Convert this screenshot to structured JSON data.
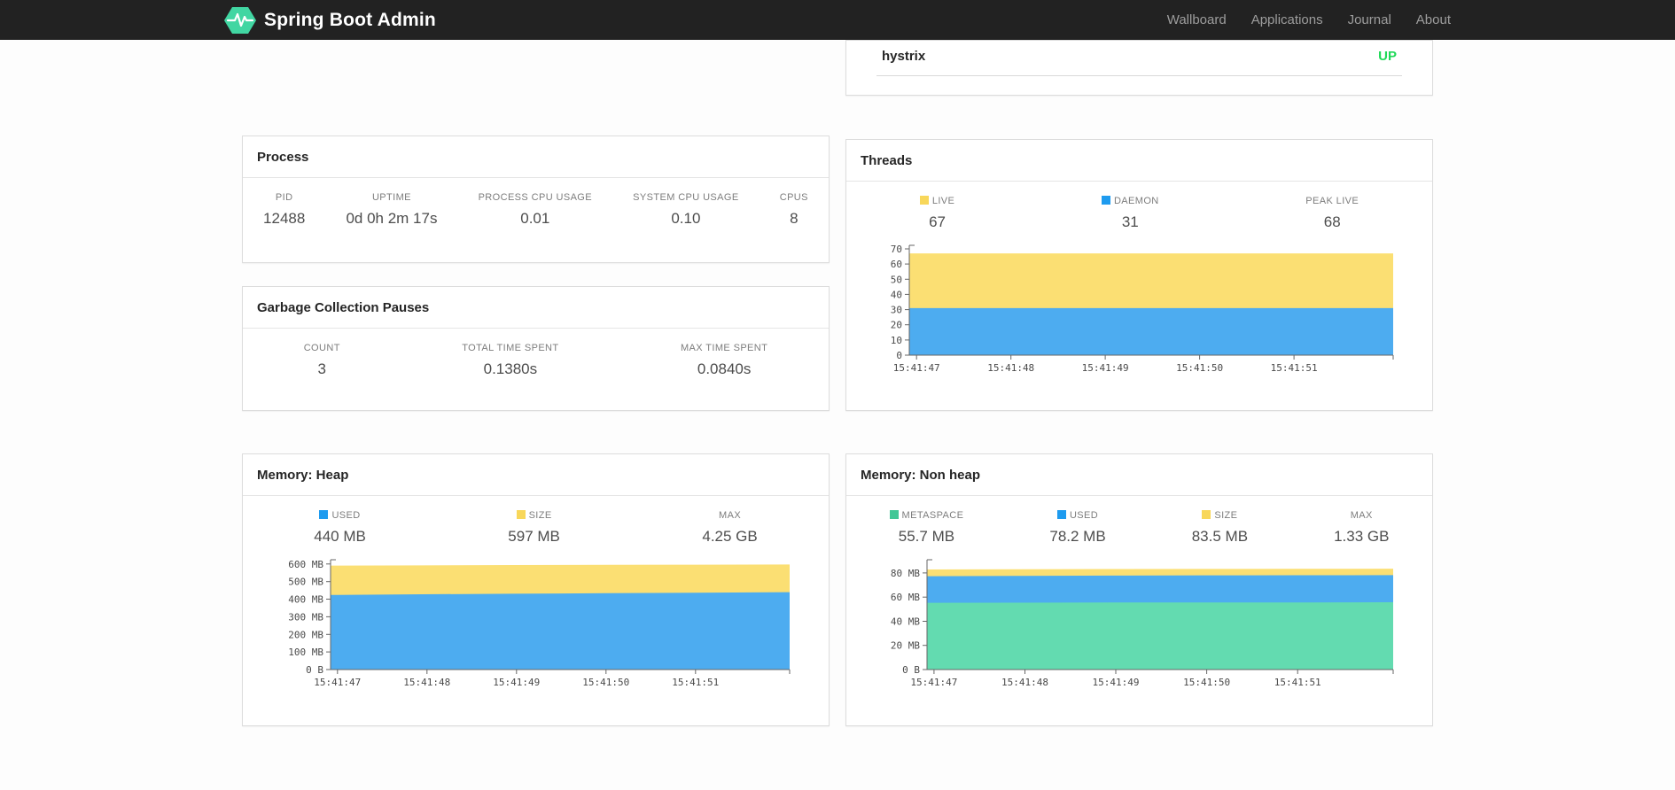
{
  "navbar": {
    "brand": "Spring Boot Admin",
    "links": [
      {
        "label": "Wallboard"
      },
      {
        "label": "Applications"
      },
      {
        "label": "Journal"
      },
      {
        "label": "About"
      }
    ]
  },
  "colors": {
    "brand_green": "#41d6a2",
    "status_up": "#20d958",
    "navbar_bg": "#222222"
  },
  "health": {
    "name": "hystrix",
    "status": "UP"
  },
  "panels": {
    "process": {
      "title": "Process",
      "metrics": [
        {
          "label": "PID",
          "value": "12488"
        },
        {
          "label": "UPTIME",
          "value": "0d 0h 2m 17s"
        },
        {
          "label": "PROCESS CPU USAGE",
          "value": "0.01"
        },
        {
          "label": "SYSTEM CPU USAGE",
          "value": "0.10"
        },
        {
          "label": "CPUS",
          "value": "8"
        }
      ]
    },
    "gc": {
      "title": "Garbage Collection Pauses",
      "metrics": [
        {
          "label": "COUNT",
          "value": "3"
        },
        {
          "label": "TOTAL TIME SPENT",
          "value": "0.1380s"
        },
        {
          "label": "MAX TIME SPENT",
          "value": "0.0840s"
        }
      ]
    },
    "threads": {
      "title": "Threads",
      "metrics": [
        {
          "label": "LIVE",
          "value": "67"
        },
        {
          "label": "DAEMON",
          "value": "31"
        },
        {
          "label": "PEAK LIVE",
          "value": "68"
        }
      ]
    },
    "heap": {
      "title": "Memory: Heap",
      "metrics": [
        {
          "label": "USED",
          "value": "440 MB"
        },
        {
          "label": "SIZE",
          "value": "597 MB"
        },
        {
          "label": "MAX",
          "value": "4.25 GB"
        }
      ]
    },
    "nonheap": {
      "title": "Memory: Non heap",
      "metrics": [
        {
          "label": "METASPACE",
          "value": "55.7 MB"
        },
        {
          "label": "USED",
          "value": "78.2 MB"
        },
        {
          "label": "SIZE",
          "value": "83.5 MB"
        },
        {
          "label": "MAX",
          "value": "1.33 GB"
        }
      ]
    }
  },
  "chart_data": [
    {
      "type": "area",
      "stacked": true,
      "title": "Threads",
      "x_labels": [
        "15:41:47",
        "15:41:48",
        "15:41:49",
        "15:41:50",
        "15:41:51"
      ],
      "series": [
        {
          "name": "LIVE",
          "color": "#f8d75a",
          "fill": "#fbdf73",
          "values": [
            67,
            67,
            67,
            67,
            67,
            67
          ]
        },
        {
          "name": "DAEMON",
          "color": "#1e9bef",
          "fill": "#4dacf0",
          "values": [
            31,
            31,
            31,
            31,
            31,
            31
          ]
        }
      ],
      "ylim": [
        0,
        70
      ],
      "y_plot_max": 70,
      "y_ticks": [
        {
          "value": 0,
          "label": "0"
        },
        {
          "value": 10,
          "label": "10"
        },
        {
          "value": 20,
          "label": "20"
        },
        {
          "value": 30,
          "label": "30"
        },
        {
          "value": 40,
          "label": "40"
        },
        {
          "value": 50,
          "label": "50"
        },
        {
          "value": 60,
          "label": "60"
        },
        {
          "value": 70,
          "label": "70"
        }
      ],
      "legend_position": "top",
      "grid": false
    },
    {
      "type": "area",
      "stacked": true,
      "title": "Memory: Heap",
      "x_labels": [
        "15:41:47",
        "15:41:48",
        "15:41:49",
        "15:41:50",
        "15:41:51"
      ],
      "series": [
        {
          "name": "USED",
          "color": "#1e9bef",
          "fill": "#4dacf0",
          "values": [
            424,
            428,
            431,
            434,
            437,
            440
          ]
        },
        {
          "name": "SIZE",
          "color": "#f8d75a",
          "fill": "#fbdf73",
          "values": [
            591,
            592,
            594,
            595,
            596,
            597
          ]
        }
      ],
      "ylim": [
        0,
        600
      ],
      "y_plot_max": 604,
      "y_ticks": [
        {
          "value": 0,
          "label": "0 B"
        },
        {
          "value": 100,
          "label": "100 MB"
        },
        {
          "value": 200,
          "label": "200 MB"
        },
        {
          "value": 300,
          "label": "300 MB"
        },
        {
          "value": 400,
          "label": "400 MB"
        },
        {
          "value": 500,
          "label": "500 MB"
        },
        {
          "value": 600,
          "label": "600 MB"
        }
      ],
      "legend_position": "top",
      "grid": false
    },
    {
      "type": "area",
      "stacked": true,
      "title": "Memory: Non heap",
      "x_labels": [
        "15:41:47",
        "15:41:48",
        "15:41:49",
        "15:41:50",
        "15:41:51"
      ],
      "series": [
        {
          "name": "METASPACE",
          "color": "#41c796",
          "fill": "#63dbb0",
          "values": [
            55.3,
            55.4,
            55.5,
            55.5,
            55.6,
            55.7
          ]
        },
        {
          "name": "USED",
          "color": "#1e9bef",
          "fill": "#4dacf0",
          "values": [
            77.3,
            77.6,
            77.8,
            78.0,
            78.1,
            78.2
          ]
        },
        {
          "name": "SIZE",
          "color": "#f8d75a",
          "fill": "#fbdf73",
          "values": [
            82.9,
            83.1,
            83.2,
            83.3,
            83.4,
            83.5
          ]
        }
      ],
      "ylim": [
        0,
        80
      ],
      "y_plot_max": 88,
      "y_ticks": [
        {
          "value": 0,
          "label": "0 B"
        },
        {
          "value": 20,
          "label": "20 MB"
        },
        {
          "value": 40,
          "label": "40 MB"
        },
        {
          "value": 60,
          "label": "60 MB"
        },
        {
          "value": 80,
          "label": "80 MB"
        }
      ],
      "legend_position": "top",
      "grid": false
    }
  ]
}
